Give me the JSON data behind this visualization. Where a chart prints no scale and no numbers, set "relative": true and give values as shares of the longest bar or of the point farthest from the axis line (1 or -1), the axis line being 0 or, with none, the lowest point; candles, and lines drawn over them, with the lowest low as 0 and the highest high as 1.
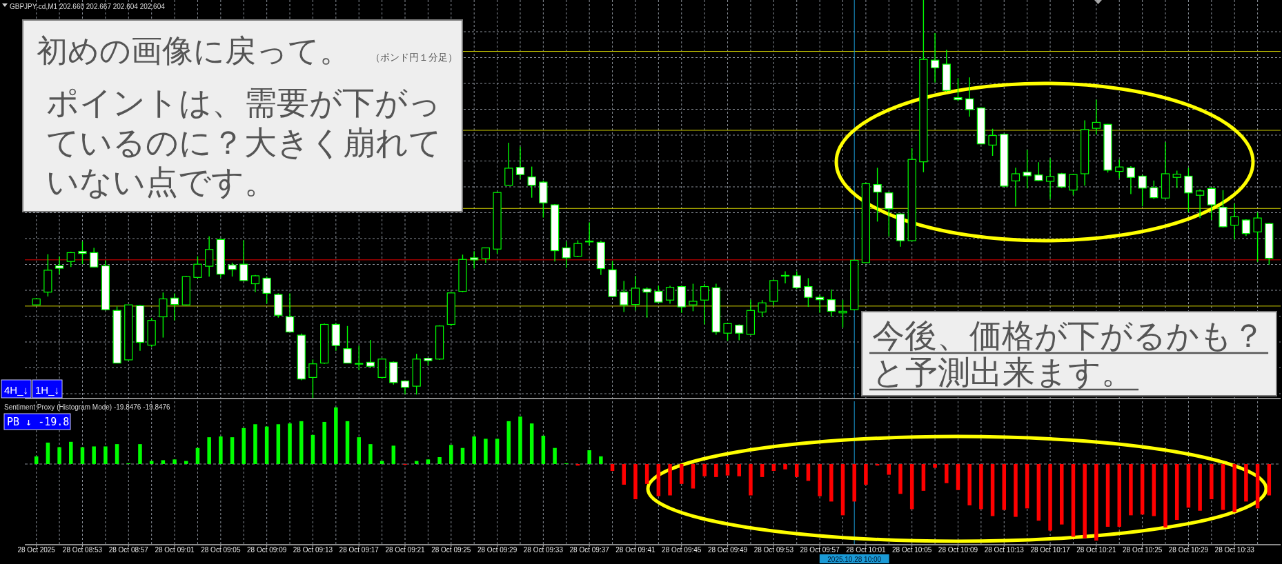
{
  "chart_data": [
    {
      "type": "candlestick",
      "title": "GBPJPY-cd,M1  202.660 202.667 202.604 202.604",
      "color": "#00ff00",
      "relative": true,
      "grid": true,
      "tick_labels": false,
      "x": [
        "2025-10-28T08:49",
        "2025-10-28T08:50",
        "2025-10-28T08:51",
        "2025-10-28T08:52",
        "2025-10-28T08:53",
        "2025-10-28T08:54",
        "2025-10-28T08:55",
        "2025-10-28T08:56",
        "2025-10-28T08:57",
        "2025-10-28T08:58",
        "2025-10-28T08:59",
        "2025-10-28T09:00",
        "2025-10-28T09:01",
        "2025-10-28T09:02",
        "2025-10-28T09:03",
        "2025-10-28T09:04",
        "2025-10-28T09:05",
        "2025-10-28T09:06",
        "2025-10-28T09:07",
        "2025-10-28T09:08",
        "2025-10-28T09:09",
        "2025-10-28T09:10",
        "2025-10-28T09:11",
        "2025-10-28T09:12",
        "2025-10-28T09:13",
        "2025-10-28T09:14",
        "2025-10-28T09:15",
        "2025-10-28T09:16",
        "2025-10-28T09:17",
        "2025-10-28T09:18",
        "2025-10-28T09:19",
        "2025-10-28T09:20",
        "2025-10-28T09:21",
        "2025-10-28T09:22",
        "2025-10-28T09:23",
        "2025-10-28T09:24",
        "2025-10-28T09:25",
        "2025-10-28T09:26",
        "2025-10-28T09:27",
        "2025-10-28T09:28",
        "2025-10-28T09:29",
        "2025-10-28T09:30",
        "2025-10-28T09:31",
        "2025-10-28T09:32",
        "2025-10-28T09:33",
        "2025-10-28T09:34",
        "2025-10-28T09:35",
        "2025-10-28T09:36",
        "2025-10-28T09:37",
        "2025-10-28T09:38",
        "2025-10-28T09:39",
        "2025-10-28T09:40",
        "2025-10-28T09:41",
        "2025-10-28T09:42",
        "2025-10-28T09:43",
        "2025-10-28T09:44",
        "2025-10-28T09:45",
        "2025-10-28T09:46",
        "2025-10-28T09:47",
        "2025-10-28T09:48",
        "2025-10-28T09:49",
        "2025-10-28T09:50",
        "2025-10-28T09:51",
        "2025-10-28T09:52",
        "2025-10-28T09:53",
        "2025-10-28T09:54",
        "2025-10-28T09:55",
        "2025-10-28T09:56",
        "2025-10-28T09:57",
        "2025-10-28T09:58",
        "2025-10-28T09:59",
        "2025-10-28T10:00",
        "2025-10-28T10:01",
        "2025-10-28T10:02",
        "2025-10-28T10:03",
        "2025-10-28T10:04",
        "2025-10-28T10:05",
        "2025-10-28T10:06",
        "2025-10-28T10:07",
        "2025-10-28T10:08",
        "2025-10-28T10:09",
        "2025-10-28T10:10",
        "2025-10-28T10:11",
        "2025-10-28T10:12",
        "2025-10-28T10:13",
        "2025-10-28T10:14",
        "2025-10-28T10:15",
        "2025-10-28T10:16",
        "2025-10-28T10:17",
        "2025-10-28T10:18",
        "2025-10-28T10:19",
        "2025-10-28T10:20",
        "2025-10-28T10:21",
        "2025-10-28T10:22",
        "2025-10-28T10:23",
        "2025-10-28T10:24",
        "2025-10-28T10:25",
        "2025-10-28T10:26",
        "2025-10-28T10:27",
        "2025-10-28T10:28",
        "2025-10-28T10:29",
        "2025-10-28T10:30",
        "2025-10-28T10:31",
        "2025-10-28T10:32",
        "2025-10-28T10:33",
        "2025-10-28T10:34",
        "2025-10-28T10:35",
        "2025-10-28T10:36"
      ],
      "ohlc": [
        [
          0.235,
          0.252,
          0.233,
          0.25
        ],
        [
          0.267,
          0.362,
          0.256,
          0.322
        ],
        [
          0.333,
          0.357,
          0.312,
          0.327
        ],
        [
          0.344,
          0.368,
          0.33,
          0.366
        ],
        [
          0.369,
          0.394,
          0.337,
          0.364
        ],
        [
          0.366,
          0.378,
          0.33,
          0.33
        ],
        [
          0.333,
          0.347,
          0.221,
          0.223
        ],
        [
          0.221,
          0.231,
          0.089,
          0.089
        ],
        [
          0.097,
          0.235,
          0.095,
          0.235
        ],
        [
          0.233,
          0.235,
          0.12,
          0.141
        ],
        [
          0.134,
          0.202,
          0.13,
          0.196
        ],
        [
          0.205,
          0.266,
          0.153,
          0.25
        ],
        [
          0.252,
          0.264,
          0.196,
          0.236
        ],
        [
          0.235,
          0.308,
          0.233,
          0.306
        ],
        [
          0.304,
          0.357,
          0.302,
          0.337
        ],
        [
          0.332,
          0.407,
          0.306,
          0.374
        ],
        [
          0.399,
          0.401,
          0.304,
          0.312
        ],
        [
          0.335,
          0.341,
          0.306,
          0.324
        ],
        [
          0.337,
          0.397,
          0.295,
          0.296
        ],
        [
          0.288,
          0.31,
          0.267,
          0.308
        ],
        [
          0.302,
          0.306,
          0.238,
          0.264
        ],
        [
          0.261,
          0.264,
          0.203,
          0.209
        ],
        [
          0.205,
          0.264,
          0.167,
          0.167
        ],
        [
          0.159,
          0.163,
          0.046,
          0.049
        ],
        [
          0.053,
          0.098,
          0,
          0.087
        ],
        [
          0.089,
          0.188,
          0.087,
          0.186
        ],
        [
          0.186,
          0.188,
          0.12,
          0.133
        ],
        [
          0.125,
          0.182,
          0.089,
          0.089
        ],
        [
          0.087,
          0.133,
          0.072,
          0.088
        ],
        [
          0.091,
          0.147,
          0.077,
          0.081
        ],
        [
          0.053,
          0.101,
          0.05,
          0.099
        ],
        [
          0.091,
          0.093,
          0.035,
          0.04
        ],
        [
          0.044,
          0.046,
          0.011,
          0.028
        ],
        [
          0.031,
          0.112,
          0.01,
          0.099
        ],
        [
          0.101,
          0.102,
          0.083,
          0.095
        ],
        [
          0.099,
          0.184,
          0.097,
          0.182
        ],
        [
          0.186,
          0.267,
          0.182,
          0.265
        ],
        [
          0.269,
          0.361,
          0.267,
          0.349
        ],
        [
          0.353,
          0.37,
          0.326,
          0.348
        ],
        [
          0.351,
          0.379,
          0.341,
          0.378
        ],
        [
          0.375,
          0.519,
          0.363,
          0.517
        ],
        [
          0.535,
          0.642,
          0.534,
          0.578
        ],
        [
          0.58,
          0.632,
          0.551,
          0.562
        ],
        [
          0.556,
          0.582,
          0.504,
          0.535
        ],
        [
          0.543,
          0.547,
          0.454,
          0.491
        ],
        [
          0.486,
          0.488,
          0.344,
          0.371
        ],
        [
          0.378,
          0.394,
          0.328,
          0.353
        ],
        [
          0.357,
          0.397,
          0.355,
          0.389
        ],
        [
          0.393,
          0.442,
          0.384,
          0.395
        ],
        [
          0.392,
          0.396,
          0.31,
          0.326
        ],
        [
          0.323,
          0.345,
          0.254,
          0.256
        ],
        [
          0.267,
          0.295,
          0.217,
          0.235
        ],
        [
          0.236,
          0.308,
          0.221,
          0.277
        ],
        [
          0.275,
          0.279,
          0.203,
          0.267
        ],
        [
          0.269,
          0.283,
          0.24,
          0.242
        ],
        [
          0.247,
          0.283,
          0.238,
          0.279
        ],
        [
          0.281,
          0.283,
          0.215,
          0.23
        ],
        [
          0.235,
          0.288,
          0.219,
          0.244
        ],
        [
          0.247,
          0.287,
          0.186,
          0.281
        ],
        [
          0.278,
          0.288,
          0.16,
          0.167
        ],
        [
          0.164,
          0.189,
          0.145,
          0.188
        ],
        [
          0.184,
          0.186,
          0.146,
          0.164
        ],
        [
          0.161,
          0.248,
          0.159,
          0.221
        ],
        [
          0.217,
          0.247,
          0.204,
          0.24
        ],
        [
          0.244,
          0.299,
          0.233,
          0.296
        ],
        [
          0.308,
          0.319,
          0.289,
          0.309
        ],
        [
          0.308,
          0.319,
          0.275,
          0.278
        ],
        [
          0.281,
          0.302,
          0.23,
          0.254
        ],
        [
          0.254,
          0.26,
          0.215,
          0.248
        ],
        [
          0.248,
          0.274,
          0.205,
          0.219
        ],
        [
          0.215,
          0.248,
          0.178,
          0.219
        ],
        [
          0.223,
          0.348,
          0.221,
          0.347
        ],
        [
          0.341,
          0.541,
          0.34,
          0.539
        ],
        [
          0.537,
          0.579,
          0.444,
          0.518
        ],
        [
          0.516,
          0.518,
          0.407,
          0.476
        ],
        [
          0.463,
          0.465,
          0.381,
          0.396
        ],
        [
          0.396,
          0.628,
          0.394,
          0.6
        ],
        [
          0.594,
          1,
          0.568,
          0.851
        ],
        [
          0.849,
          0.917,
          0.793,
          0.83
        ],
        [
          0.839,
          0.875,
          0.77,
          0.773
        ],
        [
          0.755,
          0.804,
          0.746,
          0.75
        ],
        [
          0.752,
          0.806,
          0.707,
          0.725
        ],
        [
          0.729,
          0.731,
          0.638,
          0.639
        ],
        [
          0.636,
          0.677,
          0.609,
          0.66
        ],
        [
          0.663,
          0.665,
          0.531,
          0.533
        ],
        [
          0.546,
          0.579,
          0.482,
          0.564
        ],
        [
          0.568,
          0.624,
          0.527,
          0.559
        ],
        [
          0.561,
          0.593,
          0.546,
          0.547
        ],
        [
          0.545,
          0.603,
          0.501,
          0.557
        ],
        [
          0.564,
          0.566,
          0.528,
          0.531
        ],
        [
          0.523,
          0.564,
          0.51,
          0.562
        ],
        [
          0.564,
          0.698,
          0.534,
          0.675
        ],
        [
          0.678,
          0.75,
          0.662,
          0.693
        ],
        [
          0.688,
          0.689,
          0.567,
          0.573
        ],
        [
          0.57,
          0.6,
          0.553,
          0.581
        ],
        [
          0.579,
          0.583,
          0.513,
          0.555
        ],
        [
          0.558,
          0.561,
          0.482,
          0.528
        ],
        [
          0.529,
          0.547,
          0.501,
          0.504
        ],
        [
          0.503,
          0.643,
          0.502,
          0.564
        ],
        [
          0.555,
          0.572,
          0.528,
          0.563
        ],
        [
          0.558,
          0.579,
          0.467,
          0.516
        ],
        [
          0.51,
          0.525,
          0.453,
          0.521
        ],
        [
          0.527,
          0.531,
          0.448,
          0.486
        ],
        [
          0.48,
          0.523,
          0.429,
          0.431
        ],
        [
          0.435,
          0.489,
          0.399,
          0.456
        ],
        [
          0.448,
          0.45,
          0.408,
          0.414
        ],
        [
          0.418,
          0.467,
          0.343,
          0.453
        ],
        [
          0.439,
          0.441,
          0.336,
          0.352
        ]
      ],
      "xlim": [
        "2025-10-28T08:48",
        "2025-10-28T10:37"
      ],
      "xticks": [
        {
          "value": "2025-10-28T08:49",
          "label": null
        },
        {
          "value": "2025-10-28T08:51",
          "label": null
        },
        {
          "value": "2025-10-28T08:53",
          "label": null
        },
        {
          "value": "2025-10-28T08:55",
          "label": null
        },
        {
          "value": "2025-10-28T08:57",
          "label": null
        },
        {
          "value": "2025-10-28T08:59",
          "label": null
        },
        {
          "value": "2025-10-28T09:01",
          "label": null
        },
        {
          "value": "2025-10-28T09:03",
          "label": null
        },
        {
          "value": "2025-10-28T09:05",
          "label": null
        },
        {
          "value": "2025-10-28T09:07",
          "label": null
        },
        {
          "value": "2025-10-28T09:09",
          "label": null
        },
        {
          "value": "2025-10-28T09:11",
          "label": null
        },
        {
          "value": "2025-10-28T09:13",
          "label": null
        },
        {
          "value": "2025-10-28T09:15",
          "label": null
        },
        {
          "value": "2025-10-28T09:17",
          "label": null
        },
        {
          "value": "2025-10-28T09:19",
          "label": null
        },
        {
          "value": "2025-10-28T09:21",
          "label": null
        },
        {
          "value": "2025-10-28T09:23",
          "label": null
        },
        {
          "value": "2025-10-28T09:25",
          "label": null
        },
        {
          "value": "2025-10-28T09:27",
          "label": null
        },
        {
          "value": "2025-10-28T09:29",
          "label": null
        },
        {
          "value": "2025-10-28T09:31",
          "label": null
        },
        {
          "value": "2025-10-28T09:33",
          "label": null
        },
        {
          "value": "2025-10-28T09:35",
          "label": null
        },
        {
          "value": "2025-10-28T09:37",
          "label": null
        },
        {
          "value": "2025-10-28T09:39",
          "label": null
        },
        {
          "value": "2025-10-28T09:41",
          "label": null
        },
        {
          "value": "2025-10-28T09:43",
          "label": null
        },
        {
          "value": "2025-10-28T09:45",
          "label": null
        },
        {
          "value": "2025-10-28T09:47",
          "label": null
        },
        {
          "value": "2025-10-28T09:49",
          "label": null
        },
        {
          "value": "2025-10-28T09:51",
          "label": null
        },
        {
          "value": "2025-10-28T09:53",
          "label": null
        },
        {
          "value": "2025-10-28T09:55",
          "label": null
        },
        {
          "value": "2025-10-28T09:57",
          "label": null
        },
        {
          "value": "2025-10-28T09:59",
          "label": null
        },
        {
          "value": "2025-10-28T10:01",
          "label": null
        },
        {
          "value": "2025-10-28T10:03",
          "label": null
        },
        {
          "value": "2025-10-28T10:05",
          "label": null
        },
        {
          "value": "2025-10-28T10:07",
          "label": null
        },
        {
          "value": "2025-10-28T10:09",
          "label": null
        },
        {
          "value": "2025-10-28T10:11",
          "label": null
        },
        {
          "value": "2025-10-28T10:13",
          "label": null
        },
        {
          "value": "2025-10-28T10:15",
          "label": null
        },
        {
          "value": "2025-10-28T10:17",
          "label": null
        },
        {
          "value": "2025-10-28T10:19",
          "label": null
        },
        {
          "value": "2025-10-28T10:21",
          "label": null
        },
        {
          "value": "2025-10-28T10:23",
          "label": null
        },
        {
          "value": "2025-10-28T10:25",
          "label": null
        },
        {
          "value": "2025-10-28T10:27",
          "label": null
        },
        {
          "value": "2025-10-28T10:29",
          "label": null
        },
        {
          "value": "2025-10-28T10:31",
          "label": null
        },
        {
          "value": "2025-10-28T10:33",
          "label": null
        },
        {
          "value": "2025-10-28T10:35",
          "label": null
        }
      ],
      "ref_lines": [
        {
          "axis": "y",
          "value": 0.871,
          "color": "#cccc00"
        },
        {
          "axis": "y",
          "value": 0.673,
          "color": "#cccc00"
        },
        {
          "axis": "y",
          "value": 0.477,
          "color": "#cccc00"
        },
        {
          "axis": "y",
          "value": 0.348,
          "color": "#e00000"
        },
        {
          "axis": "y",
          "value": 0.232,
          "color": "#cccc00"
        },
        {
          "axis": "x",
          "value": "2025-10-28T10:00",
          "color": "#1a9ad6"
        }
      ],
      "annotations": [
        "初めの画像に戻って。",
        "（ポンド円１分足）",
        "ポイントは、需要が下がっているのに？大きく崩れていない点です。",
        "今後、価格が下がるかも？と予測出来ます。",
        "4H_↓",
        "1H_↓"
      ]
    },
    {
      "type": "bar",
      "title": "Sentiment Proxy (Histogram Mode) -19.8476 -19.8476",
      "relative": true,
      "grid": "x",
      "tick_labels": "x",
      "x": [
        "2025-10-28T08:49",
        "2025-10-28T08:50",
        "2025-10-28T08:51",
        "2025-10-28T08:52",
        "2025-10-28T08:53",
        "2025-10-28T08:54",
        "2025-10-28T08:55",
        "2025-10-28T08:56",
        "2025-10-28T08:57",
        "2025-10-28T08:58",
        "2025-10-28T08:59",
        "2025-10-28T09:00",
        "2025-10-28T09:01",
        "2025-10-28T09:02",
        "2025-10-28T09:03",
        "2025-10-28T09:04",
        "2025-10-28T09:05",
        "2025-10-28T09:06",
        "2025-10-28T09:07",
        "2025-10-28T09:08",
        "2025-10-28T09:09",
        "2025-10-28T09:10",
        "2025-10-28T09:11",
        "2025-10-28T09:12",
        "2025-10-28T09:13",
        "2025-10-28T09:14",
        "2025-10-28T09:15",
        "2025-10-28T09:16",
        "2025-10-28T09:17",
        "2025-10-28T09:18",
        "2025-10-28T09:19",
        "2025-10-28T09:20",
        "2025-10-28T09:21",
        "2025-10-28T09:22",
        "2025-10-28T09:23",
        "2025-10-28T09:24",
        "2025-10-28T09:25",
        "2025-10-28T09:26",
        "2025-10-28T09:27",
        "2025-10-28T09:28",
        "2025-10-28T09:29",
        "2025-10-28T09:30",
        "2025-10-28T09:31",
        "2025-10-28T09:32",
        "2025-10-28T09:33",
        "2025-10-28T09:34",
        "2025-10-28T09:35",
        "2025-10-28T09:36",
        "2025-10-28T09:37",
        "2025-10-28T09:38",
        "2025-10-28T09:39",
        "2025-10-28T09:40",
        "2025-10-28T09:41",
        "2025-10-28T09:42",
        "2025-10-28T09:43",
        "2025-10-28T09:44",
        "2025-10-28T09:45",
        "2025-10-28T09:46",
        "2025-10-28T09:47",
        "2025-10-28T09:48",
        "2025-10-28T09:49",
        "2025-10-28T09:50",
        "2025-10-28T09:51",
        "2025-10-28T09:52",
        "2025-10-28T09:53",
        "2025-10-28T09:54",
        "2025-10-28T09:55",
        "2025-10-28T09:56",
        "2025-10-28T09:57",
        "2025-10-28T09:58",
        "2025-10-28T09:59",
        "2025-10-28T10:00",
        "2025-10-28T10:01",
        "2025-10-28T10:02",
        "2025-10-28T10:03",
        "2025-10-28T10:04",
        "2025-10-28T10:05",
        "2025-10-28T10:06",
        "2025-10-28T10:07",
        "2025-10-28T10:08",
        "2025-10-28T10:09",
        "2025-10-28T10:10",
        "2025-10-28T10:11",
        "2025-10-28T10:12",
        "2025-10-28T10:13",
        "2025-10-28T10:14",
        "2025-10-28T10:15",
        "2025-10-28T10:16",
        "2025-10-28T10:17",
        "2025-10-28T10:18",
        "2025-10-28T10:19",
        "2025-10-28T10:20",
        "2025-10-28T10:21",
        "2025-10-28T10:22",
        "2025-10-28T10:23",
        "2025-10-28T10:24",
        "2025-10-28T10:25",
        "2025-10-28T10:26",
        "2025-10-28T10:27",
        "2025-10-28T10:28",
        "2025-10-28T10:29",
        "2025-10-28T10:30",
        "2025-10-28T10:31",
        "2025-10-28T10:32",
        "2025-10-28T10:33",
        "2025-10-28T10:34",
        "2025-10-28T10:35",
        "2025-10-28T10:36"
      ],
      "values": [
        0.1,
        0.28,
        0.22,
        0.29,
        0.22,
        0.23,
        0.23,
        0.26,
        0.01,
        0.26,
        0.04,
        0.05,
        0.06,
        0.04,
        0.21,
        0.35,
        0.36,
        0.35,
        0.47,
        0.52,
        0.49,
        0.52,
        0.53,
        0.56,
        0.38,
        0.55,
        0.74,
        0.56,
        0.35,
        0.26,
        0.04,
        0.24,
        -0.01,
        0.04,
        0.06,
        0.09,
        0.25,
        0.21,
        0.36,
        0.33,
        0.33,
        0.56,
        0.62,
        0.53,
        0.37,
        0.21,
        0.01,
        -0.02,
        0.18,
        0.1,
        -0.09,
        -0.27,
        -0.46,
        -0.26,
        -0.42,
        -0.41,
        -0.26,
        -0.32,
        -0.16,
        -0.17,
        -0.15,
        -0.16,
        -0.41,
        -0.17,
        -0.09,
        -0.07,
        -0.17,
        -0.22,
        -0.42,
        -0.49,
        -0.67,
        -0.49,
        -0.27,
        -0.02,
        -0.14,
        -0.39,
        -0.59,
        -0.35,
        -0.05,
        -0.25,
        -0.34,
        -0.54,
        -0.59,
        -0.68,
        -0.6,
        -0.69,
        -0.58,
        -0.74,
        -0.87,
        -0.79,
        -0.95,
        -0.97,
        -1,
        -0.82,
        -0.82,
        -0.67,
        -0.66,
        -0.68,
        -0.83,
        -0.73,
        -0.57,
        -0.61,
        -0.46,
        -0.6,
        -0.63,
        -0.49,
        -0.58,
        -0.41
      ],
      "colors": [
        "#00ff00",
        "#00ff00",
        "#00ff00",
        "#00ff00",
        "#00ff00",
        "#00ff00",
        "#00ff00",
        "#00ff00",
        "#00ff00",
        "#00ff00",
        "#00ff00",
        "#00ff00",
        "#00ff00",
        "#00ff00",
        "#00ff00",
        "#00ff00",
        "#00ff00",
        "#00ff00",
        "#00ff00",
        "#00ff00",
        "#00ff00",
        "#00ff00",
        "#00ff00",
        "#00ff00",
        "#00ff00",
        "#00ff00",
        "#00ff00",
        "#00ff00",
        "#00ff00",
        "#00ff00",
        "#00ff00",
        "#00ff00",
        "#ff0000",
        "#00ff00",
        "#00ff00",
        "#00ff00",
        "#00ff00",
        "#00ff00",
        "#00ff00",
        "#00ff00",
        "#00ff00",
        "#00ff00",
        "#00ff00",
        "#00ff00",
        "#00ff00",
        "#00ff00",
        "#00ff00",
        "#ff0000",
        "#00ff00",
        "#00ff00",
        "#ff0000",
        "#ff0000",
        "#ff0000",
        "#ff0000",
        "#ff0000",
        "#ff0000",
        "#ff0000",
        "#ff0000",
        "#ff0000",
        "#ff0000",
        "#ff0000",
        "#ff0000",
        "#ff0000",
        "#ff0000",
        "#ff0000",
        "#ff0000",
        "#ff0000",
        "#ff0000",
        "#ff0000",
        "#ff0000",
        "#ff0000",
        "#ff0000",
        "#ff0000",
        "#ff0000",
        "#ff0000",
        "#ff0000",
        "#ff0000",
        "#ff0000",
        "#ff0000",
        "#ff0000",
        "#ff0000",
        "#ff0000",
        "#ff0000",
        "#ff0000",
        "#ff0000",
        "#ff0000",
        "#ff0000",
        "#ff0000",
        "#ff0000",
        "#ff0000",
        "#ff0000",
        "#ff0000",
        "#ff0000",
        "#ff0000",
        "#ff0000",
        "#ff0000",
        "#ff0000",
        "#ff0000",
        "#ff0000",
        "#ff0000",
        "#ff0000",
        "#ff0000",
        "#ff0000",
        "#ff0000",
        "#ff0000",
        "#ff0000",
        "#ff0000",
        "#ff0000"
      ],
      "xlim": [
        "2025-10-28T08:48",
        "2025-10-28T10:37"
      ],
      "xticks": [
        {
          "value": "2025-10-28T08:49",
          "label": "28 Oct 2025"
        },
        {
          "value": "2025-10-28T08:51",
          "label": null
        },
        {
          "value": "2025-10-28T08:53",
          "label": "28 Oct 08:53"
        },
        {
          "value": "2025-10-28T08:55",
          "label": null
        },
        {
          "value": "2025-10-28T08:57",
          "label": "28 Oct 08:57"
        },
        {
          "value": "2025-10-28T08:59",
          "label": null
        },
        {
          "value": "2025-10-28T09:01",
          "label": "28 Oct 09:01"
        },
        {
          "value": "2025-10-28T09:03",
          "label": null
        },
        {
          "value": "2025-10-28T09:05",
          "label": "28 Oct 09:05"
        },
        {
          "value": "2025-10-28T09:07",
          "label": null
        },
        {
          "value": "2025-10-28T09:09",
          "label": "28 Oct 09:09"
        },
        {
          "value": "2025-10-28T09:11",
          "label": null
        },
        {
          "value": "2025-10-28T09:13",
          "label": "28 Oct 09:13"
        },
        {
          "value": "2025-10-28T09:15",
          "label": null
        },
        {
          "value": "2025-10-28T09:17",
          "label": "28 Oct 09:17"
        },
        {
          "value": "2025-10-28T09:19",
          "label": null
        },
        {
          "value": "2025-10-28T09:21",
          "label": "28 Oct 09:21"
        },
        {
          "value": "2025-10-28T09:23",
          "label": null
        },
        {
          "value": "2025-10-28T09:25",
          "label": "28 Oct 09:25"
        },
        {
          "value": "2025-10-28T09:27",
          "label": null
        },
        {
          "value": "2025-10-28T09:29",
          "label": "28 Oct 09:29"
        },
        {
          "value": "2025-10-28T09:31",
          "label": null
        },
        {
          "value": "2025-10-28T09:33",
          "label": "28 Oct 09:33"
        },
        {
          "value": "2025-10-28T09:35",
          "label": null
        },
        {
          "value": "2025-10-28T09:37",
          "label": "28 Oct 09:37"
        },
        {
          "value": "2025-10-28T09:39",
          "label": null
        },
        {
          "value": "2025-10-28T09:41",
          "label": "28 Oct 09:41"
        },
        {
          "value": "2025-10-28T09:43",
          "label": null
        },
        {
          "value": "2025-10-28T09:45",
          "label": "28 Oct 09:45"
        },
        {
          "value": "2025-10-28T09:47",
          "label": null
        },
        {
          "value": "2025-10-28T09:49",
          "label": "28 Oct 09:49"
        },
        {
          "value": "2025-10-28T09:51",
          "label": null
        },
        {
          "value": "2025-10-28T09:53",
          "label": "28 Oct 09:53"
        },
        {
          "value": "2025-10-28T09:55",
          "label": null
        },
        {
          "value": "2025-10-28T09:57",
          "label": "28 Oct 09:57"
        },
        {
          "value": "2025-10-28T09:59",
          "label": null
        },
        {
          "value": "2025-10-28T10:01",
          "label": "28 Oct 10:01"
        },
        {
          "value": "2025-10-28T10:03",
          "label": null
        },
        {
          "value": "2025-10-28T10:05",
          "label": "28 Oct 10:05"
        },
        {
          "value": "2025-10-28T10:07",
          "label": null
        },
        {
          "value": "2025-10-28T10:09",
          "label": "28 Oct 10:09"
        },
        {
          "value": "2025-10-28T10:11",
          "label": null
        },
        {
          "value": "2025-10-28T10:13",
          "label": "28 Oct 10:13"
        },
        {
          "value": "2025-10-28T10:15",
          "label": null
        },
        {
          "value": "2025-10-28T10:17",
          "label": "28 Oct 10:17"
        },
        {
          "value": "2025-10-28T10:19",
          "label": null
        },
        {
          "value": "2025-10-28T10:21",
          "label": "28 Oct 10:21"
        },
        {
          "value": "2025-10-28T10:23",
          "label": null
        },
        {
          "value": "2025-10-28T10:25",
          "label": "28 Oct 10:25"
        },
        {
          "value": "2025-10-28T10:27",
          "label": null
        },
        {
          "value": "2025-10-28T10:29",
          "label": "28 Oct 10:29"
        },
        {
          "value": "2025-10-28T10:31",
          "label": null
        },
        {
          "value": "2025-10-28T10:33",
          "label": "28 Oct 10:33"
        },
        {
          "value": "2025-10-28T10:35",
          "label": null
        }
      ],
      "ref_lines": [
        {
          "axis": "x",
          "value": "2025-10-28T10:00",
          "label": "2025.10.28 10:00",
          "color": "#1a9ad6"
        }
      ],
      "annotations": [
        "PB ↓ -19.8"
      ]
    }
  ]
}
